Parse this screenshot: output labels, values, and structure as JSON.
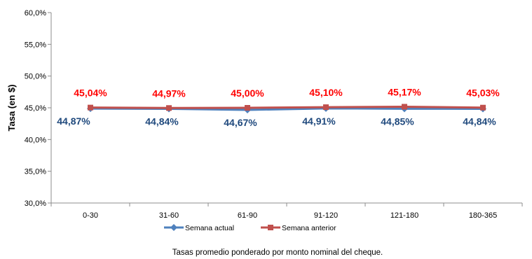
{
  "chart_data": {
    "type": "line",
    "categories": [
      "0-30",
      "31-60",
      "61-90",
      "91-120",
      "121-180",
      "180-365"
    ],
    "series": [
      {
        "name": "Semana actual",
        "values": [
          44.87,
          44.84,
          44.67,
          44.91,
          44.85,
          44.84
        ],
        "labels": [
          "44,87%",
          "44,84%",
          "44,67%",
          "44,91%",
          "44,85%",
          "44,84%"
        ],
        "color": "#4F81BD",
        "label_color": "#1F497D",
        "marker": "diamond"
      },
      {
        "name": "Semana anterior",
        "values": [
          45.04,
          44.97,
          45.0,
          45.1,
          45.17,
          45.03
        ],
        "labels": [
          "45,04%",
          "44,97%",
          "45,00%",
          "45,10%",
          "45,17%",
          "45,03%"
        ],
        "color": "#C0504D",
        "label_color": "#FF0000",
        "marker": "square"
      }
    ],
    "ylabel": "Tasa (en $)",
    "ylim": [
      30,
      60
    ],
    "yticks": [
      30,
      35,
      40,
      45,
      50,
      55,
      60
    ],
    "ytick_labels": [
      "30,0%",
      "35,0%",
      "40,0%",
      "45,0%",
      "50,0%",
      "55,0%",
      "60,0%"
    ],
    "grid": false,
    "legend_position": "bottom"
  },
  "footnote": "Tasas promedio ponderado por monto nominal del cheque."
}
